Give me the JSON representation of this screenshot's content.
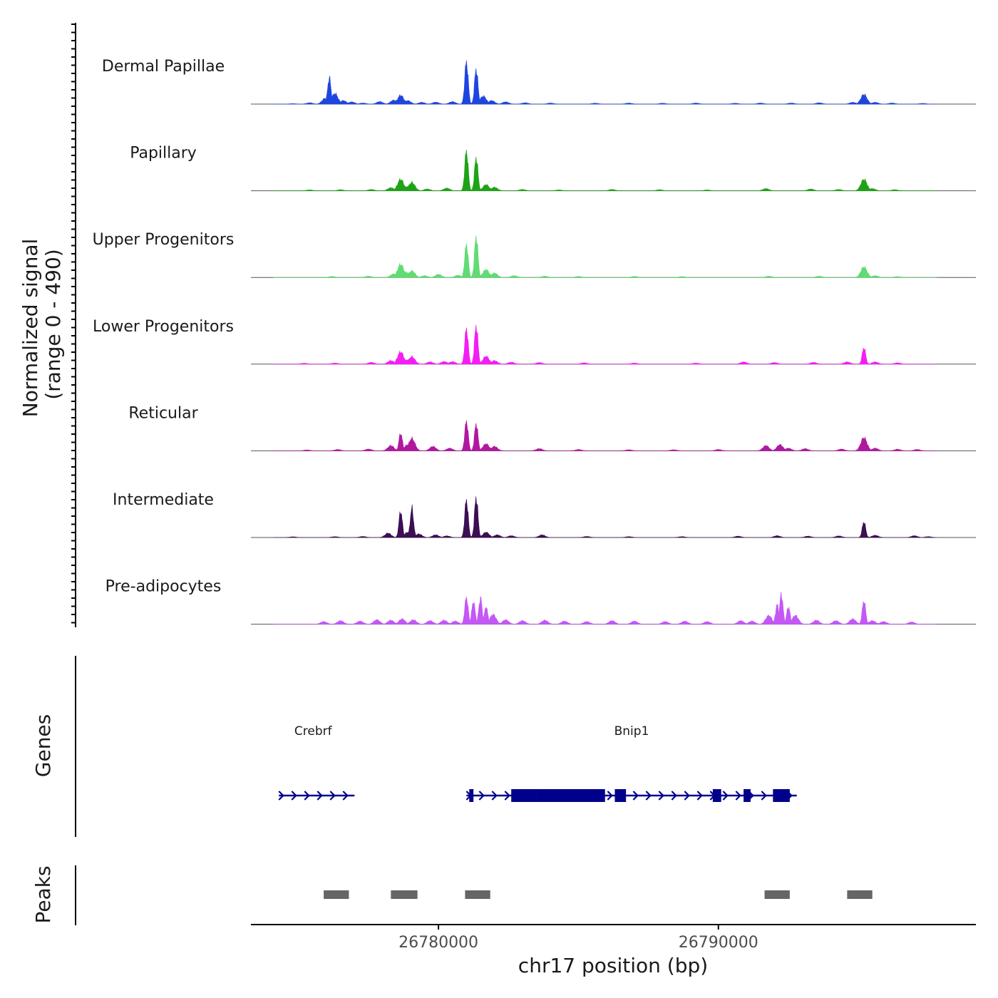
{
  "chart_data": {
    "type": "area",
    "title": "",
    "chromosome": "chr17",
    "xlabel": "chr17 position (bp)",
    "xlim": [
      26773300,
      26799200
    ],
    "xticks": [
      26780000,
      26790000
    ],
    "xtick_labels": [
      "26780000",
      "26790000"
    ],
    "coverage_ylabel_line1": "Normalized signal",
    "coverage_ylabel_line2": "(range 0 - 490)",
    "ylim": [
      0,
      490
    ],
    "tracks": [
      {
        "name": "Dermal Papillae",
        "color": "#1f45e0",
        "peaks": [
          [
            26774800,
            5
          ],
          [
            26775400,
            15
          ],
          [
            26775950,
            65
          ],
          [
            26776100,
            300
          ],
          [
            26776300,
            120
          ],
          [
            26776600,
            40
          ],
          [
            26776900,
            25
          ],
          [
            26777300,
            12
          ],
          [
            26777900,
            28
          ],
          [
            26778400,
            45
          ],
          [
            26778650,
            100
          ],
          [
            26778900,
            40
          ],
          [
            26779400,
            20
          ],
          [
            26779900,
            22
          ],
          [
            26780500,
            28
          ],
          [
            26781000,
            490
          ],
          [
            26781350,
            400
          ],
          [
            26781600,
            90
          ],
          [
            26781900,
            40
          ],
          [
            26782400,
            25
          ],
          [
            26783100,
            15
          ],
          [
            26784000,
            12
          ],
          [
            26785600,
            10
          ],
          [
            26786800,
            12
          ],
          [
            26788000,
            10
          ],
          [
            26789200,
            12
          ],
          [
            26790600,
            10
          ],
          [
            26791500,
            12
          ],
          [
            26792600,
            12
          ],
          [
            26793600,
            15
          ],
          [
            26794800,
            20
          ],
          [
            26795200,
            110
          ],
          [
            26795600,
            20
          ],
          [
            26796200,
            12
          ],
          [
            26797300,
            8
          ]
        ]
      },
      {
        "name": "Papillary",
        "color": "#1ea316",
        "peaks": [
          [
            26775400,
            10
          ],
          [
            26776500,
            12
          ],
          [
            26777600,
            15
          ],
          [
            26778300,
            35
          ],
          [
            26778650,
            130
          ],
          [
            26778900,
            50
          ],
          [
            26779050,
            95
          ],
          [
            26779600,
            20
          ],
          [
            26780300,
            30
          ],
          [
            26781000,
            460
          ],
          [
            26781350,
            380
          ],
          [
            26781700,
            70
          ],
          [
            26782000,
            40
          ],
          [
            26783000,
            15
          ],
          [
            26784300,
            10
          ],
          [
            26786200,
            15
          ],
          [
            26787900,
            12
          ],
          [
            26789600,
            10
          ],
          [
            26791700,
            25
          ],
          [
            26793300,
            20
          ],
          [
            26794300,
            15
          ],
          [
            26795200,
            130
          ],
          [
            26795500,
            25
          ],
          [
            26796300,
            12
          ]
        ]
      },
      {
        "name": "Upper Progenitors",
        "color": "#5fdc72",
        "peaks": [
          [
            26776200,
            12
          ],
          [
            26777500,
            15
          ],
          [
            26778400,
            40
          ],
          [
            26778650,
            150
          ],
          [
            26778850,
            60
          ],
          [
            26779050,
            75
          ],
          [
            26779500,
            20
          ],
          [
            26780000,
            35
          ],
          [
            26780700,
            25
          ],
          [
            26781000,
            380
          ],
          [
            26781350,
            470
          ],
          [
            26781700,
            90
          ],
          [
            26782000,
            50
          ],
          [
            26782700,
            20
          ],
          [
            26783800,
            15
          ],
          [
            26785000,
            12
          ],
          [
            26787000,
            12
          ],
          [
            26788700,
            10
          ],
          [
            26791800,
            15
          ],
          [
            26793600,
            15
          ],
          [
            26795200,
            120
          ],
          [
            26795600,
            20
          ],
          [
            26796400,
            10
          ]
        ]
      },
      {
        "name": "Lower Progenitors",
        "color": "#f41df3",
        "peaks": [
          [
            26775200,
            10
          ],
          [
            26776300,
            12
          ],
          [
            26777600,
            20
          ],
          [
            26778300,
            40
          ],
          [
            26778650,
            140
          ],
          [
            26778900,
            50
          ],
          [
            26779050,
            85
          ],
          [
            26779700,
            25
          ],
          [
            26780200,
            30
          ],
          [
            26780500,
            28
          ],
          [
            26781000,
            410
          ],
          [
            26781350,
            440
          ],
          [
            26781700,
            90
          ],
          [
            26782000,
            40
          ],
          [
            26782600,
            22
          ],
          [
            26783600,
            18
          ],
          [
            26785200,
            15
          ],
          [
            26787000,
            12
          ],
          [
            26789200,
            12
          ],
          [
            26790900,
            25
          ],
          [
            26792000,
            18
          ],
          [
            26793400,
            20
          ],
          [
            26794600,
            25
          ],
          [
            26795200,
            190
          ],
          [
            26795600,
            25
          ],
          [
            26796400,
            15
          ]
        ]
      },
      {
        "name": "Reticular",
        "color": "#b0189f",
        "peaks": [
          [
            26775300,
            10
          ],
          [
            26776400,
            15
          ],
          [
            26777500,
            20
          ],
          [
            26778300,
            60
          ],
          [
            26778650,
            200
          ],
          [
            26778900,
            70
          ],
          [
            26779050,
            140
          ],
          [
            26779800,
            50
          ],
          [
            26780400,
            30
          ],
          [
            26781000,
            340
          ],
          [
            26781350,
            310
          ],
          [
            26781700,
            80
          ],
          [
            26782000,
            50
          ],
          [
            26783600,
            25
          ],
          [
            26785000,
            15
          ],
          [
            26786800,
            12
          ],
          [
            26788400,
            12
          ],
          [
            26790000,
            15
          ],
          [
            26791700,
            60
          ],
          [
            26792200,
            70
          ],
          [
            26792500,
            30
          ],
          [
            26793100,
            25
          ],
          [
            26794400,
            20
          ],
          [
            26795200,
            150
          ],
          [
            26795600,
            30
          ],
          [
            26796400,
            18
          ],
          [
            26797100,
            15
          ]
        ]
      },
      {
        "name": "Intermediate",
        "color": "#3b0f52",
        "peaks": [
          [
            26774800,
            8
          ],
          [
            26776300,
            10
          ],
          [
            26777300,
            12
          ],
          [
            26778200,
            50
          ],
          [
            26778650,
            300
          ],
          [
            26778900,
            60
          ],
          [
            26779050,
            330
          ],
          [
            26779300,
            40
          ],
          [
            26779900,
            30
          ],
          [
            26780300,
            18
          ],
          [
            26781000,
            430
          ],
          [
            26781350,
            460
          ],
          [
            26781700,
            60
          ],
          [
            26782100,
            30
          ],
          [
            26782600,
            20
          ],
          [
            26783700,
            30
          ],
          [
            26785300,
            12
          ],
          [
            26786800,
            10
          ],
          [
            26788700,
            10
          ],
          [
            26790700,
            15
          ],
          [
            26792100,
            20
          ],
          [
            26793200,
            15
          ],
          [
            26794300,
            18
          ],
          [
            26795200,
            180
          ],
          [
            26795600,
            25
          ],
          [
            26797000,
            20
          ],
          [
            26797500,
            10
          ]
        ]
      },
      {
        "name": "Pre-adipocytes",
        "color": "#c358f5",
        "peaks": [
          [
            26775900,
            30
          ],
          [
            26776500,
            40
          ],
          [
            26777200,
            35
          ],
          [
            26777800,
            50
          ],
          [
            26778300,
            45
          ],
          [
            26778700,
            60
          ],
          [
            26779100,
            50
          ],
          [
            26779700,
            40
          ],
          [
            26780200,
            45
          ],
          [
            26780600,
            35
          ],
          [
            26781000,
            310
          ],
          [
            26781250,
            260
          ],
          [
            26781500,
            300
          ],
          [
            26781700,
            200
          ],
          [
            26781950,
            110
          ],
          [
            26782400,
            50
          ],
          [
            26783000,
            40
          ],
          [
            26783800,
            45
          ],
          [
            26784500,
            35
          ],
          [
            26785300,
            30
          ],
          [
            26786200,
            40
          ],
          [
            26787000,
            35
          ],
          [
            26788100,
            30
          ],
          [
            26788800,
            35
          ],
          [
            26789600,
            30
          ],
          [
            26790800,
            40
          ],
          [
            26791200,
            35
          ],
          [
            26791800,
            100
          ],
          [
            26792100,
            220
          ],
          [
            26792250,
            340
          ],
          [
            26792500,
            200
          ],
          [
            26792750,
            100
          ],
          [
            26793500,
            45
          ],
          [
            26794200,
            40
          ],
          [
            26794800,
            60
          ],
          [
            26795200,
            270
          ],
          [
            26795500,
            40
          ],
          [
            26795900,
            30
          ],
          [
            26796900,
            25
          ]
        ]
      }
    ],
    "genes_ylabel": "Genes",
    "genes": [
      {
        "name": "Crebrf",
        "start": 26774300,
        "end": 26777000,
        "strand": "+",
        "exons": []
      },
      {
        "name": "Bnip1",
        "start": 26781000,
        "end": 26792800,
        "strand": "+",
        "exons": [
          [
            26781100,
            26781250
          ],
          [
            26782600,
            26783500
          ],
          [
            26783500,
            26785950
          ],
          [
            26786300,
            26786700
          ],
          [
            26789800,
            26790100
          ],
          [
            26790900,
            26791150
          ],
          [
            26791950,
            26792550
          ]
        ]
      }
    ],
    "gene_line_color": "#00008b",
    "peaks_ylabel": "Peaks",
    "peak_regions": [
      [
        26775900,
        26776800
      ],
      [
        26778300,
        26779250
      ],
      [
        26780950,
        26781850
      ],
      [
        26791650,
        26792550
      ],
      [
        26794600,
        26795500
      ]
    ],
    "peak_color": "#666666"
  }
}
